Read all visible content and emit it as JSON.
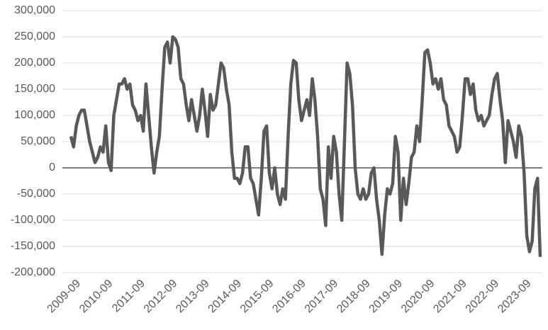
{
  "chart_data": {
    "type": "line",
    "x": [
      "2009-06",
      "2009-07",
      "2009-08",
      "2009-09",
      "2009-10",
      "2009-11",
      "2009-12",
      "2010-01",
      "2010-02",
      "2010-03",
      "2010-04",
      "2010-05",
      "2010-06",
      "2010-07",
      "2010-08",
      "2010-09",
      "2010-10",
      "2010-11",
      "2010-12",
      "2011-01",
      "2011-02",
      "2011-03",
      "2011-04",
      "2011-05",
      "2011-06",
      "2011-07",
      "2011-08",
      "2011-09",
      "2011-10",
      "2011-11",
      "2011-12",
      "2012-01",
      "2012-02",
      "2012-03",
      "2012-04",
      "2012-05",
      "2012-06",
      "2012-07",
      "2012-08",
      "2012-09",
      "2012-10",
      "2012-11",
      "2012-12",
      "2013-01",
      "2013-02",
      "2013-03",
      "2013-04",
      "2013-05",
      "2013-06",
      "2013-07",
      "2013-08",
      "2013-09",
      "2013-10",
      "2013-11",
      "2013-12",
      "2014-01",
      "2014-02",
      "2014-03",
      "2014-04",
      "2014-05",
      "2014-06",
      "2014-07",
      "2014-08",
      "2014-09",
      "2014-10",
      "2014-11",
      "2014-12",
      "2015-01",
      "2015-02",
      "2015-03",
      "2015-04",
      "2015-05",
      "2015-06",
      "2015-07",
      "2015-08",
      "2015-09",
      "2015-10",
      "2015-11",
      "2015-12",
      "2016-01",
      "2016-02",
      "2016-03",
      "2016-04",
      "2016-05",
      "2016-06",
      "2016-07",
      "2016-08",
      "2016-09",
      "2016-10",
      "2016-11",
      "2016-12",
      "2017-01",
      "2017-02",
      "2017-03",
      "2017-04",
      "2017-05",
      "2017-06",
      "2017-07",
      "2017-08",
      "2017-09",
      "2017-10",
      "2017-11",
      "2017-12",
      "2018-01",
      "2018-02",
      "2018-03",
      "2018-04",
      "2018-05",
      "2018-06",
      "2018-07",
      "2018-08",
      "2018-09",
      "2018-10",
      "2018-11",
      "2018-12",
      "2019-01",
      "2019-02",
      "2019-03",
      "2019-04",
      "2019-05",
      "2019-06",
      "2019-07",
      "2019-08",
      "2019-09",
      "2019-10",
      "2019-11",
      "2019-12",
      "2020-01",
      "2020-02",
      "2020-03",
      "2020-04",
      "2020-05",
      "2020-06",
      "2020-07",
      "2020-08",
      "2020-09",
      "2020-10",
      "2020-11",
      "2020-12",
      "2021-01",
      "2021-02",
      "2021-03",
      "2021-04",
      "2021-05",
      "2021-06",
      "2021-07",
      "2021-08",
      "2021-09",
      "2021-10",
      "2021-11",
      "2021-12",
      "2022-01",
      "2022-02",
      "2022-03",
      "2022-04",
      "2022-05",
      "2022-06",
      "2022-07",
      "2022-08",
      "2022-09",
      "2022-10",
      "2022-11",
      "2022-12",
      "2023-01",
      "2023-02",
      "2023-03",
      "2023-04",
      "2023-05",
      "2023-06",
      "2023-07",
      "2023-08",
      "2023-09",
      "2023-10",
      "2023-11",
      "2023-12",
      "2024-01"
    ],
    "series": [
      {
        "color": "#595959",
        "values": [
          60000,
          40000,
          80000,
          100000,
          110000,
          110000,
          80000,
          50000,
          30000,
          10000,
          20000,
          40000,
          30000,
          80000,
          10000,
          -5000,
          100000,
          130000,
          160000,
          160000,
          170000,
          150000,
          160000,
          120000,
          110000,
          90000,
          100000,
          70000,
          160000,
          100000,
          40000,
          -10000,
          30000,
          60000,
          150000,
          230000,
          240000,
          200000,
          250000,
          245000,
          230000,
          170000,
          160000,
          120000,
          90000,
          130000,
          100000,
          70000,
          100000,
          150000,
          110000,
          60000,
          140000,
          110000,
          120000,
          160000,
          200000,
          190000,
          150000,
          120000,
          30000,
          -20000,
          -20000,
          -30000,
          -10000,
          40000,
          40000,
          -20000,
          -30000,
          -60000,
          -90000,
          -20000,
          70000,
          80000,
          -10000,
          -40000,
          0,
          -50000,
          -70000,
          -40000,
          -60000,
          60000,
          160000,
          205000,
          200000,
          130000,
          90000,
          110000,
          130000,
          100000,
          170000,
          130000,
          60000,
          -40000,
          -60000,
          -110000,
          40000,
          -20000,
          60000,
          30000,
          -50000,
          -100000,
          50000,
          200000,
          180000,
          120000,
          0,
          -50000,
          -60000,
          -40000,
          -60000,
          -50000,
          -10000,
          0,
          -60000,
          -100000,
          -165000,
          -90000,
          -40000,
          -50000,
          -30000,
          60000,
          30000,
          -100000,
          -20000,
          -70000,
          -30000,
          20000,
          30000,
          80000,
          50000,
          130000,
          220000,
          225000,
          200000,
          160000,
          170000,
          150000,
          170000,
          130000,
          120000,
          80000,
          70000,
          60000,
          30000,
          40000,
          100000,
          170000,
          170000,
          140000,
          160000,
          110000,
          90000,
          100000,
          80000,
          90000,
          100000,
          140000,
          170000,
          180000,
          130000,
          90000,
          10000,
          90000,
          70000,
          50000,
          20000,
          80000,
          60000,
          -10000,
          -130000,
          -160000,
          -140000,
          -40000,
          -20000,
          -170000
        ]
      }
    ],
    "ylim": [
      -200000,
      300000
    ],
    "yticks": [
      {
        "value": -200000,
        "label": "-200,000"
      },
      {
        "value": -150000,
        "label": "-150,000"
      },
      {
        "value": -100000,
        "label": "-100,000"
      },
      {
        "value": -50000,
        "label": "-50,000"
      },
      0,
      {
        "value": 50000,
        "label": "50,000"
      },
      {
        "value": 100000,
        "label": "100,000"
      },
      {
        "value": 150000,
        "label": "150,000"
      },
      {
        "value": 200000,
        "label": "200,000"
      },
      {
        "value": 250000,
        "label": "250,000"
      },
      {
        "value": 300000,
        "label": "300,000"
      }
    ],
    "grid": true
  }
}
